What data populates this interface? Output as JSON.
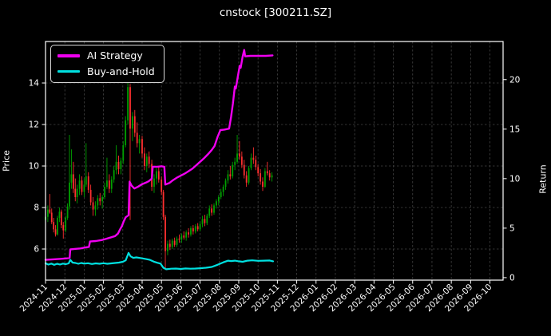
{
  "chart_data": {
    "type": "candlestick+line",
    "title": "cnstock [300211.SZ]",
    "grid": true,
    "legend_position": "upper-left",
    "colors": {
      "background": "#000000",
      "text": "#ffffff",
      "spine": "#ffffff",
      "grid": "#7a7a7a",
      "candle_up": "#00a000",
      "candle_down": "#ff3030"
    },
    "left_axis": {
      "label": "Price",
      "ticks": [
        6,
        8,
        10,
        12,
        14
      ],
      "range": [
        4.5,
        16.0
      ]
    },
    "right_axis": {
      "label": "Return",
      "ticks": [
        0,
        5,
        10,
        15,
        20
      ],
      "range": [
        -0.25,
        23.85
      ]
    },
    "x_axis": {
      "ticklabels": [
        "2024-11",
        "2024-12",
        "2025-01",
        "2025-02",
        "2025-03",
        "2025-04",
        "2025-05",
        "2025-06",
        "2025-07",
        "2025-08",
        "2025-09",
        "2025-10",
        "2025-11",
        "2025-12",
        "2026-01",
        "2026-02",
        "2026-03",
        "2026-04",
        "2026-05",
        "2026-06",
        "2026-07",
        "2026-08",
        "2026-09",
        "2026-10"
      ],
      "range_months": [
        0,
        23.68
      ]
    },
    "candles_format": "[month_offset, open, high, low, close] priced on left axis",
    "candles": [
      [
        0.0,
        7.4,
        7.9,
        7.1,
        7.55
      ],
      [
        0.12,
        7.55,
        8.1,
        7.3,
        7.9
      ],
      [
        0.22,
        7.9,
        8.65,
        7.7,
        7.75
      ],
      [
        0.32,
        7.75,
        7.95,
        7.2,
        7.3
      ],
      [
        0.42,
        7.3,
        7.5,
        6.8,
        6.95
      ],
      [
        0.52,
        6.95,
        7.15,
        6.6,
        6.7
      ],
      [
        0.62,
        6.7,
        7.6,
        6.65,
        7.5
      ],
      [
        0.72,
        7.5,
        8.0,
        7.3,
        7.8
      ],
      [
        0.82,
        7.8,
        7.9,
        7.0,
        7.15
      ],
      [
        0.92,
        7.15,
        7.3,
        6.5,
        6.9
      ],
      [
        1.04,
        6.9,
        7.6,
        6.8,
        7.5
      ],
      [
        1.14,
        7.5,
        8.2,
        7.4,
        8.05
      ],
      [
        1.24,
        8.05,
        11.5,
        7.9,
        9.2
      ],
      [
        1.34,
        9.2,
        10.8,
        8.9,
        9.6
      ],
      [
        1.44,
        9.6,
        10.2,
        8.7,
        8.9
      ],
      [
        1.54,
        8.9,
        9.4,
        8.3,
        8.5
      ],
      [
        1.64,
        8.5,
        9.1,
        8.2,
        8.9
      ],
      [
        1.76,
        8.9,
        9.6,
        8.6,
        9.3
      ],
      [
        1.88,
        9.3,
        9.5,
        8.6,
        8.75
      ],
      [
        2.0,
        8.75,
        9.4,
        8.5,
        9.1
      ],
      [
        2.1,
        9.1,
        11.1,
        9.0,
        9.5
      ],
      [
        2.22,
        9.5,
        9.7,
        8.7,
        8.85
      ],
      [
        2.34,
        8.85,
        9.1,
        8.1,
        8.25
      ],
      [
        2.46,
        8.25,
        8.5,
        7.6,
        7.9
      ],
      [
        2.58,
        7.9,
        8.3,
        7.6,
        8.1
      ],
      [
        2.7,
        8.1,
        8.6,
        7.9,
        8.45
      ],
      [
        2.82,
        8.45,
        8.7,
        8.1,
        8.3
      ],
      [
        2.94,
        8.3,
        8.6,
        7.95,
        8.5
      ],
      [
        3.06,
        8.5,
        9.2,
        8.4,
        9.0
      ],
      [
        3.18,
        9.0,
        10.4,
        8.9,
        9.3
      ],
      [
        3.3,
        9.3,
        9.6,
        8.7,
        8.9
      ],
      [
        3.42,
        8.9,
        9.5,
        8.7,
        9.35
      ],
      [
        3.54,
        9.35,
        10.0,
        9.2,
        9.8
      ],
      [
        3.66,
        9.8,
        11.0,
        9.6,
        10.2
      ],
      [
        3.78,
        10.2,
        10.5,
        9.6,
        9.85
      ],
      [
        3.9,
        9.85,
        10.4,
        9.6,
        10.25
      ],
      [
        4.02,
        10.25,
        11.2,
        10.1,
        11.0
      ],
      [
        4.14,
        11.0,
        12.4,
        10.9,
        12.2
      ],
      [
        4.26,
        12.2,
        14.1,
        12.0,
        13.8
      ],
      [
        4.38,
        13.8,
        13.95,
        7.4,
        11.8
      ],
      [
        4.5,
        11.8,
        12.6,
        11.2,
        12.4
      ],
      [
        4.62,
        12.4,
        12.7,
        11.4,
        11.6
      ],
      [
        4.74,
        11.6,
        12.1,
        10.9,
        11.1
      ],
      [
        4.86,
        11.1,
        11.5,
        10.6,
        11.3
      ],
      [
        5.0,
        11.3,
        11.45,
        10.4,
        10.6
      ],
      [
        5.12,
        10.6,
        10.9,
        9.8,
        10.0
      ],
      [
        5.24,
        10.0,
        10.6,
        9.7,
        10.45
      ],
      [
        5.36,
        10.45,
        10.7,
        9.9,
        10.1
      ],
      [
        5.5,
        10.1,
        10.3,
        8.8,
        9.0
      ],
      [
        5.62,
        9.0,
        9.6,
        8.7,
        9.4
      ],
      [
        5.74,
        9.4,
        9.9,
        9.1,
        9.75
      ],
      [
        5.86,
        9.75,
        9.95,
        9.2,
        9.35
      ],
      [
        6.0,
        9.35,
        9.5,
        8.6,
        8.75
      ],
      [
        6.1,
        8.75,
        8.85,
        7.4,
        7.55
      ],
      [
        6.2,
        7.55,
        7.65,
        5.05,
        5.9
      ],
      [
        6.32,
        5.9,
        6.4,
        5.7,
        6.25
      ],
      [
        6.44,
        6.25,
        6.45,
        5.95,
        6.1
      ],
      [
        6.56,
        6.1,
        6.5,
        6.0,
        6.4
      ],
      [
        6.68,
        6.4,
        6.55,
        6.1,
        6.2
      ],
      [
        6.8,
        6.2,
        6.6,
        6.1,
        6.5
      ],
      [
        6.92,
        6.5,
        6.7,
        6.3,
        6.45
      ],
      [
        7.04,
        6.45,
        6.75,
        6.3,
        6.65
      ],
      [
        7.16,
        6.65,
        6.85,
        6.45,
        6.55
      ],
      [
        7.28,
        6.55,
        6.9,
        6.4,
        6.8
      ],
      [
        7.4,
        6.8,
        7.0,
        6.55,
        6.7
      ],
      [
        7.52,
        6.7,
        7.1,
        6.6,
        7.0
      ],
      [
        7.64,
        7.0,
        7.15,
        6.7,
        6.85
      ],
      [
        7.76,
        6.85,
        7.2,
        6.75,
        7.1
      ],
      [
        7.88,
        7.1,
        7.25,
        6.85,
        6.95
      ],
      [
        8.0,
        6.95,
        7.3,
        6.85,
        7.2
      ],
      [
        8.12,
        7.2,
        7.6,
        7.05,
        7.45
      ],
      [
        8.24,
        7.45,
        7.65,
        7.1,
        7.25
      ],
      [
        8.36,
        7.25,
        7.7,
        7.15,
        7.6
      ],
      [
        8.48,
        7.6,
        8.1,
        7.5,
        7.95
      ],
      [
        8.6,
        7.95,
        8.15,
        7.6,
        7.75
      ],
      [
        8.72,
        7.75,
        8.2,
        7.65,
        8.1
      ],
      [
        8.84,
        8.1,
        8.4,
        7.95,
        8.3
      ],
      [
        8.96,
        8.3,
        8.6,
        8.1,
        8.5
      ],
      [
        9.08,
        8.5,
        8.9,
        8.4,
        8.75
      ],
      [
        9.2,
        8.75,
        9.1,
        8.55,
        9.0
      ],
      [
        9.32,
        9.0,
        9.4,
        8.85,
        9.3
      ],
      [
        9.44,
        9.3,
        9.8,
        9.15,
        9.6
      ],
      [
        9.56,
        9.6,
        10.0,
        9.35,
        9.5
      ],
      [
        9.68,
        9.5,
        10.2,
        9.4,
        10.05
      ],
      [
        9.8,
        10.05,
        10.4,
        9.8,
        10.2
      ],
      [
        9.92,
        10.2,
        11.5,
        10.1,
        10.6
      ],
      [
        10.04,
        10.6,
        11.2,
        10.3,
        10.45
      ],
      [
        10.16,
        10.45,
        10.7,
        9.9,
        10.05
      ],
      [
        10.28,
        10.05,
        10.3,
        9.4,
        9.55
      ],
      [
        10.4,
        9.55,
        9.75,
        9.0,
        9.2
      ],
      [
        10.52,
        9.2,
        10.0,
        9.1,
        9.9
      ],
      [
        10.64,
        9.9,
        10.6,
        9.8,
        10.4
      ],
      [
        10.76,
        10.4,
        10.9,
        10.1,
        10.3
      ],
      [
        10.88,
        10.3,
        10.5,
        9.8,
        9.95
      ],
      [
        11.0,
        9.95,
        10.1,
        9.5,
        9.65
      ],
      [
        11.12,
        9.65,
        9.85,
        9.1,
        9.25
      ],
      [
        11.24,
        9.25,
        9.45,
        8.8,
        9.0
      ],
      [
        11.36,
        9.0,
        9.9,
        8.95,
        9.75
      ],
      [
        11.48,
        9.75,
        10.2,
        9.55,
        9.65
      ],
      [
        11.6,
        9.65,
        9.8,
        9.3,
        9.45
      ],
      [
        11.72,
        9.45,
        9.7,
        9.25,
        9.55
      ]
    ],
    "series_format": "[month_offset, return] valued on right axis",
    "series": [
      {
        "name": "AI Strategy",
        "color": "#f000f0",
        "axis": "right",
        "points": [
          [
            0,
            1.8
          ],
          [
            0.4,
            1.85
          ],
          [
            0.8,
            1.9
          ],
          [
            1.1,
            1.95
          ],
          [
            1.25,
            2.0
          ],
          [
            1.28,
            2.85
          ],
          [
            1.5,
            2.9
          ],
          [
            1.8,
            2.95
          ],
          [
            2.05,
            3.05
          ],
          [
            2.25,
            3.1
          ],
          [
            2.3,
            3.65
          ],
          [
            2.6,
            3.7
          ],
          [
            2.9,
            3.8
          ],
          [
            3.1,
            3.9
          ],
          [
            3.35,
            4.05
          ],
          [
            3.6,
            4.2
          ],
          [
            3.75,
            4.45
          ],
          [
            3.85,
            4.85
          ],
          [
            3.95,
            5.2
          ],
          [
            4.05,
            5.7
          ],
          [
            4.15,
            6.1
          ],
          [
            4.3,
            6.3
          ],
          [
            4.35,
            9.7
          ],
          [
            4.45,
            9.3
          ],
          [
            4.6,
            9.0
          ],
          [
            4.8,
            9.2
          ],
          [
            5.0,
            9.45
          ],
          [
            5.2,
            9.6
          ],
          [
            5.35,
            9.75
          ],
          [
            5.5,
            10.0
          ],
          [
            5.55,
            11.2
          ],
          [
            5.8,
            11.2
          ],
          [
            6.0,
            11.25
          ],
          [
            6.15,
            11.2
          ],
          [
            6.2,
            9.4
          ],
          [
            6.4,
            9.55
          ],
          [
            6.6,
            9.85
          ],
          [
            6.8,
            10.1
          ],
          [
            7.0,
            10.3
          ],
          [
            7.2,
            10.5
          ],
          [
            7.4,
            10.75
          ],
          [
            7.6,
            11.0
          ],
          [
            7.8,
            11.35
          ],
          [
            8.0,
            11.7
          ],
          [
            8.2,
            12.05
          ],
          [
            8.4,
            12.45
          ],
          [
            8.6,
            12.9
          ],
          [
            8.75,
            13.3
          ],
          [
            8.9,
            14.2
          ],
          [
            9.05,
            14.9
          ],
          [
            9.25,
            14.95
          ],
          [
            9.5,
            15.05
          ],
          [
            9.6,
            16.2
          ],
          [
            9.7,
            17.6
          ],
          [
            9.8,
            19.3
          ],
          [
            9.85,
            19.1
          ],
          [
            9.95,
            20.3
          ],
          [
            10.05,
            21.4
          ],
          [
            10.1,
            21.2
          ],
          [
            10.2,
            22.3
          ],
          [
            10.28,
            23.0
          ],
          [
            10.33,
            22.35
          ],
          [
            10.6,
            22.4
          ],
          [
            11.0,
            22.4
          ],
          [
            11.4,
            22.4
          ],
          [
            11.75,
            22.45
          ]
        ]
      },
      {
        "name": "Buy-and-Hold",
        "color": "#00e0e0",
        "axis": "right",
        "points": [
          [
            0,
            1.45
          ],
          [
            0.15,
            1.32
          ],
          [
            0.3,
            1.42
          ],
          [
            0.45,
            1.3
          ],
          [
            0.6,
            1.4
          ],
          [
            0.75,
            1.33
          ],
          [
            0.9,
            1.42
          ],
          [
            1.05,
            1.36
          ],
          [
            1.2,
            1.44
          ],
          [
            1.28,
            1.8
          ],
          [
            1.4,
            1.52
          ],
          [
            1.55,
            1.48
          ],
          [
            1.7,
            1.4
          ],
          [
            1.85,
            1.48
          ],
          [
            2.0,
            1.42
          ],
          [
            2.2,
            1.46
          ],
          [
            2.4,
            1.38
          ],
          [
            2.6,
            1.44
          ],
          [
            2.8,
            1.4
          ],
          [
            3.0,
            1.46
          ],
          [
            3.2,
            1.4
          ],
          [
            3.4,
            1.44
          ],
          [
            3.6,
            1.48
          ],
          [
            3.8,
            1.52
          ],
          [
            4.0,
            1.6
          ],
          [
            4.15,
            1.75
          ],
          [
            4.3,
            2.5
          ],
          [
            4.4,
            2.15
          ],
          [
            4.55,
            2.0
          ],
          [
            4.7,
            2.05
          ],
          [
            4.85,
            2.0
          ],
          [
            5.0,
            1.95
          ],
          [
            5.2,
            1.88
          ],
          [
            5.4,
            1.8
          ],
          [
            5.6,
            1.62
          ],
          [
            5.8,
            1.5
          ],
          [
            5.95,
            1.42
          ],
          [
            6.1,
            1.0
          ],
          [
            6.25,
            0.85
          ],
          [
            6.5,
            0.9
          ],
          [
            6.75,
            0.92
          ],
          [
            7.0,
            0.88
          ],
          [
            7.25,
            0.93
          ],
          [
            7.5,
            0.9
          ],
          [
            7.75,
            0.92
          ],
          [
            8.0,
            0.95
          ],
          [
            8.3,
            1.0
          ],
          [
            8.6,
            1.08
          ],
          [
            8.9,
            1.3
          ],
          [
            9.2,
            1.55
          ],
          [
            9.45,
            1.72
          ],
          [
            9.6,
            1.68
          ],
          [
            9.8,
            1.72
          ],
          [
            10.0,
            1.65
          ],
          [
            10.2,
            1.6
          ],
          [
            10.45,
            1.72
          ],
          [
            10.7,
            1.75
          ],
          [
            11.0,
            1.7
          ],
          [
            11.3,
            1.72
          ],
          [
            11.6,
            1.73
          ],
          [
            11.78,
            1.65
          ]
        ]
      }
    ]
  }
}
